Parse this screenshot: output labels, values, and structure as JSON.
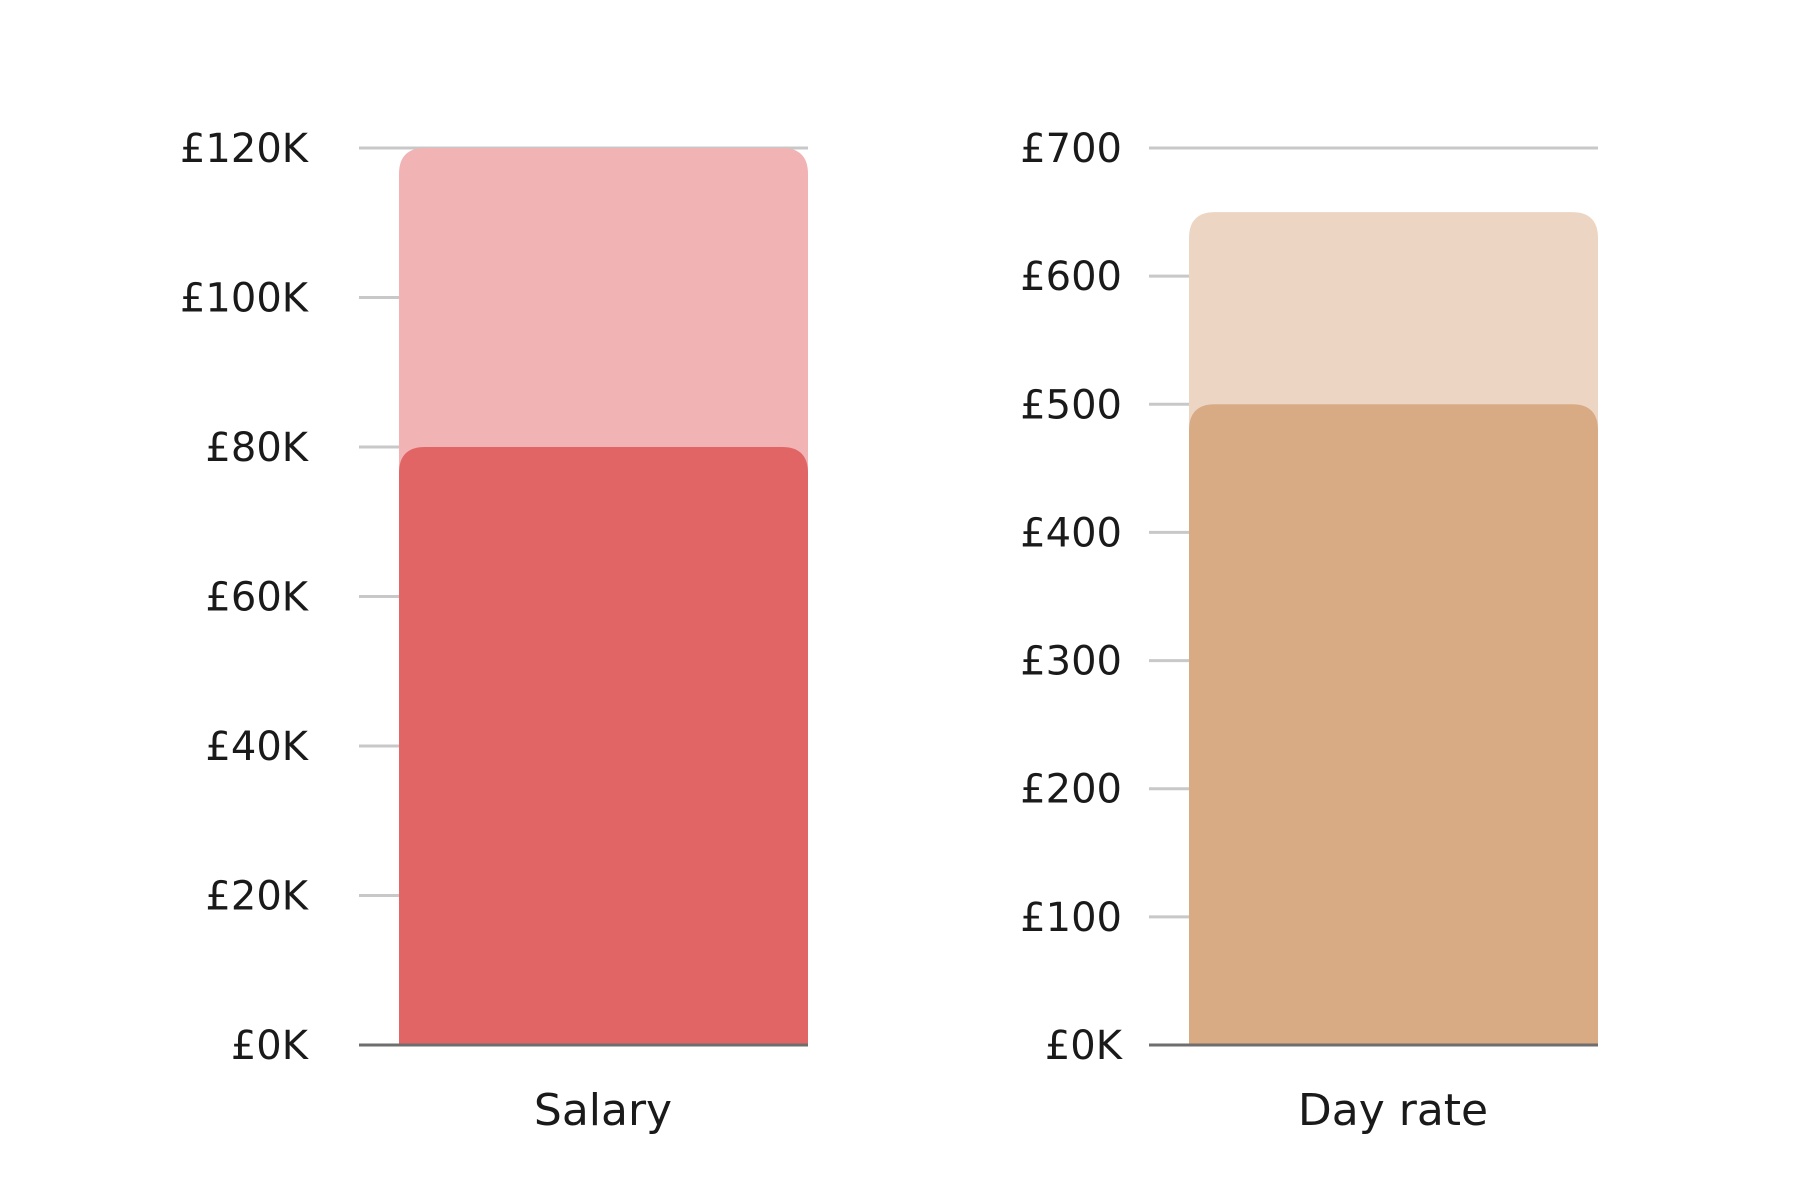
{
  "chart_data": [
    {
      "type": "bar",
      "title": "",
      "xlabel": "",
      "ylabel": "",
      "categories": [
        "Salary"
      ],
      "series": [
        {
          "values": [
            120000
          ],
          "color": "#f2b3b5"
        },
        {
          "values": [
            80000
          ],
          "color": "#e26565"
        }
      ],
      "ylim": [
        0,
        120000
      ],
      "yticks": [
        0,
        20000,
        40000,
        60000,
        80000,
        100000,
        120000
      ],
      "ytick_labels": [
        "£0K",
        "£20K",
        "£40K",
        "£60K",
        "£80K",
        "£100K",
        "£120K"
      ],
      "grid": true,
      "legend": "none",
      "layout": "overlapping"
    },
    {
      "type": "bar",
      "title": "",
      "xlabel": "",
      "ylabel": "",
      "categories": [
        "Day rate"
      ],
      "series": [
        {
          "values": [
            650
          ],
          "color": "#edd5c3"
        },
        {
          "values": [
            500
          ],
          "color": "#d8ab84"
        }
      ],
      "ylim": [
        0,
        700
      ],
      "yticks": [
        0,
        100,
        200,
        300,
        400,
        500,
        600,
        700
      ],
      "ytick_labels": [
        "£0K",
        "£100",
        "£200",
        "£300",
        "£400",
        "£500",
        "£600",
        "£700"
      ],
      "grid": true,
      "legend": "none",
      "layout": "overlapping"
    }
  ]
}
